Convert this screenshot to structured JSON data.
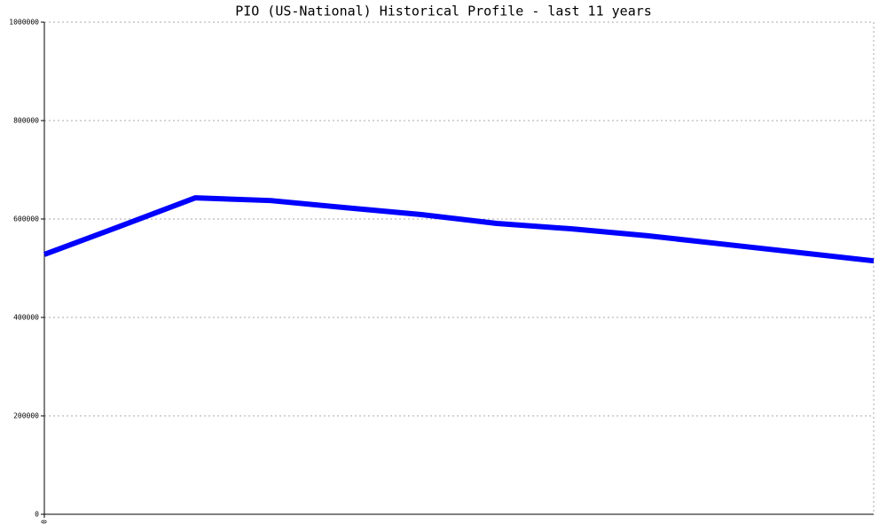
{
  "chart_data": {
    "type": "line",
    "title": "PIO (US-National) Historical Profile - last 11 years",
    "x": [
      0,
      1,
      2,
      3,
      4,
      5,
      6,
      7,
      8,
      9,
      10,
      11
    ],
    "series": [
      {
        "color": "#0000ff",
        "values": [
          528000,
          585000,
          643000,
          637500,
          623000,
          609000,
          591000,
          580000,
          566000,
          549000,
          532000,
          515000
        ]
      }
    ],
    "xlim": [
      0,
      11
    ],
    "xticks": [
      0
    ],
    "ylim": [
      0,
      1000000
    ],
    "yticks": [
      0,
      200000,
      400000,
      600000,
      800000,
      1000000
    ],
    "grid": true
  }
}
